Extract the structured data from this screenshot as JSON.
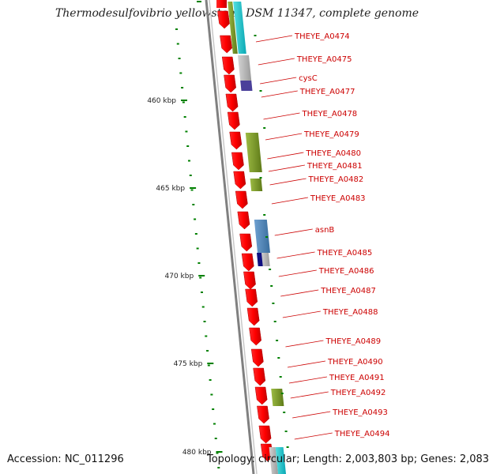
{
  "title": "Thermodesulfovibrio yellowstonii DSM 11347, complete genome",
  "accession_text": "Accession: NC_011296",
  "topology_text": "Topology: circular; Length: 2,003,803 bp; Genes: 2,083",
  "colors": {
    "cds": "#ff0000",
    "backbone": "#808080",
    "tick": "#008000",
    "label": "#cc0000",
    "cog_olive": "#7a9a2a",
    "cog_cyan": "#22cccc",
    "cog_grey": "#b0b0b0",
    "cog_purple": "#4a3f9a",
    "cog_blue": "#4682b4",
    "cog_navy": "#101080"
  },
  "ticks": [
    {
      "label": "460 kbp"
    },
    {
      "label": "465 kbp"
    },
    {
      "label": "470 kbp"
    },
    {
      "label": "475 kbp"
    },
    {
      "label": "480 kbp"
    }
  ],
  "genes": [
    {
      "label": "THEYE_A0474"
    },
    {
      "label": "THEYE_A0475"
    },
    {
      "label": "cysC"
    },
    {
      "label": "THEYE_A0477"
    },
    {
      "label": "THEYE_A0478"
    },
    {
      "label": "THEYE_A0479"
    },
    {
      "label": "THEYE_A0480"
    },
    {
      "label": "THEYE_A0481"
    },
    {
      "label": "THEYE_A0482"
    },
    {
      "label": "THEYE_A0483"
    },
    {
      "label": "asnB"
    },
    {
      "label": "THEYE_A0485"
    },
    {
      "label": "THEYE_A0486"
    },
    {
      "label": "THEYE_A0487"
    },
    {
      "label": "THEYE_A0488"
    },
    {
      "label": "THEYE_A0489"
    },
    {
      "label": "THEYE_A0490"
    },
    {
      "label": "THEYE_A0491"
    },
    {
      "label": "THEYE_A0492"
    },
    {
      "label": "THEYE_A0493"
    },
    {
      "label": "THEYE_A0494"
    }
  ]
}
